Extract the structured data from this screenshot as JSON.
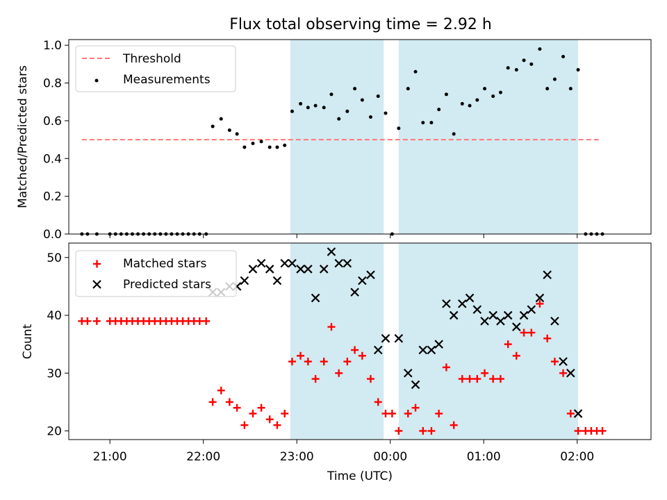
{
  "figure": {
    "title": "Flux total observing time = 2.92 h",
    "xlabel": "Time (UTC)"
  },
  "chart_data": [
    {
      "panel": "top",
      "type": "scatter",
      "ylabel": "Matched/Predicted stars",
      "ylim": [
        0,
        1.03
      ],
      "yticks": [
        "0.0",
        "0.2",
        "0.4",
        "0.6",
        "0.8",
        "1.0"
      ],
      "ytick_values": [
        0,
        0.2,
        0.4,
        0.6,
        0.8,
        1.0
      ],
      "xlim_hours": [
        20.56,
        26.79
      ],
      "legend": {
        "placement": "top-left",
        "entries": [
          "Threshold",
          "Measurements"
        ]
      },
      "threshold": {
        "name": "Threshold",
        "value": 0.5,
        "x_range_hours": [
          20.7,
          26.23
        ],
        "color": "#ff7777"
      },
      "observing_windows_hours": [
        [
          22.93,
          23.93
        ],
        [
          24.09,
          26.01
        ]
      ],
      "window_color": "#add8e6",
      "series": [
        {
          "name": "Measurements",
          "color": "#000000",
          "points": [
            [
              20.7,
              0.0
            ],
            [
              20.76,
              0.0
            ],
            [
              20.86,
              0.0
            ],
            [
              21.0,
              0.0
            ],
            [
              21.06,
              0.0
            ],
            [
              21.12,
              0.0
            ],
            [
              21.18,
              0.0
            ],
            [
              21.24,
              0.0
            ],
            [
              21.3,
              0.0
            ],
            [
              21.36,
              0.0
            ],
            [
              21.42,
              0.0
            ],
            [
              21.48,
              0.0
            ],
            [
              21.54,
              0.0
            ],
            [
              21.6,
              0.0
            ],
            [
              21.66,
              0.0
            ],
            [
              21.72,
              0.0
            ],
            [
              21.78,
              0.0
            ],
            [
              21.84,
              0.0
            ],
            [
              21.9,
              0.0
            ],
            [
              21.96,
              0.0
            ],
            [
              22.03,
              0.0
            ],
            [
              22.1,
              0.57
            ],
            [
              22.19,
              0.61
            ],
            [
              22.28,
              0.55
            ],
            [
              22.36,
              0.53
            ],
            [
              22.44,
              0.46
            ],
            [
              22.53,
              0.48
            ],
            [
              22.62,
              0.49
            ],
            [
              22.71,
              0.46
            ],
            [
              22.79,
              0.46
            ],
            [
              22.87,
              0.47
            ],
            [
              22.95,
              0.65
            ],
            [
              23.04,
              0.69
            ],
            [
              23.12,
              0.67
            ],
            [
              23.2,
              0.68
            ],
            [
              23.29,
              0.67
            ],
            [
              23.37,
              0.74
            ],
            [
              23.45,
              0.61
            ],
            [
              23.54,
              0.65
            ],
            [
              23.62,
              0.77
            ],
            [
              23.7,
              0.71
            ],
            [
              23.79,
              0.62
            ],
            [
              23.87,
              0.73
            ],
            [
              23.95,
              0.64
            ],
            [
              24.02,
              0.0
            ],
            [
              24.09,
              0.56
            ],
            [
              24.19,
              0.77
            ],
            [
              24.27,
              0.86
            ],
            [
              24.35,
              0.59
            ],
            [
              24.44,
              0.59
            ],
            [
              24.52,
              0.66
            ],
            [
              24.6,
              0.74
            ],
            [
              24.68,
              0.53
            ],
            [
              24.77,
              0.69
            ],
            [
              24.85,
              0.68
            ],
            [
              24.93,
              0.71
            ],
            [
              25.01,
              0.77
            ],
            [
              25.1,
              0.73
            ],
            [
              25.18,
              0.75
            ],
            [
              25.26,
              0.88
            ],
            [
              25.35,
              0.87
            ],
            [
              25.43,
              0.92
            ],
            [
              25.51,
              0.9
            ],
            [
              25.6,
              0.98
            ],
            [
              25.68,
              0.77
            ],
            [
              25.76,
              0.82
            ],
            [
              25.85,
              0.94
            ],
            [
              25.93,
              0.77
            ],
            [
              26.01,
              0.87
            ],
            [
              26.09,
              0.0
            ],
            [
              26.15,
              0.0
            ],
            [
              26.21,
              0.0
            ],
            [
              26.27,
              0.0
            ]
          ]
        }
      ]
    },
    {
      "panel": "bottom",
      "type": "scatter",
      "ylabel": "Count",
      "ylim": [
        18.5,
        52.5
      ],
      "yticks": [
        "20",
        "30",
        "40",
        "50"
      ],
      "ytick_values": [
        20,
        30,
        40,
        50
      ],
      "xlim_hours": [
        20.56,
        26.79
      ],
      "xticks": [
        "21:00",
        "22:00",
        "23:00",
        "00:00",
        "01:00",
        "02:00"
      ],
      "xtick_hours": [
        21,
        22,
        23,
        24,
        25,
        26
      ],
      "legend": {
        "placement": "top-left",
        "entries": [
          "Matched stars",
          "Predicted stars"
        ]
      },
      "observing_windows_hours": [
        [
          22.93,
          23.93
        ],
        [
          24.09,
          26.01
        ]
      ],
      "window_color": "#add8e6",
      "series": [
        {
          "name": "Matched stars",
          "marker": "plus",
          "color": "#ff0000",
          "points": [
            [
              20.7,
              39
            ],
            [
              20.76,
              39
            ],
            [
              20.86,
              39
            ],
            [
              21.0,
              39
            ],
            [
              21.06,
              39
            ],
            [
              21.12,
              39
            ],
            [
              21.18,
              39
            ],
            [
              21.24,
              39
            ],
            [
              21.3,
              39
            ],
            [
              21.36,
              39
            ],
            [
              21.42,
              39
            ],
            [
              21.48,
              39
            ],
            [
              21.54,
              39
            ],
            [
              21.6,
              39
            ],
            [
              21.66,
              39
            ],
            [
              21.72,
              39
            ],
            [
              21.78,
              39
            ],
            [
              21.84,
              39
            ],
            [
              21.9,
              39
            ],
            [
              21.96,
              39
            ],
            [
              22.03,
              39
            ],
            [
              22.1,
              25
            ],
            [
              22.19,
              27
            ],
            [
              22.28,
              25
            ],
            [
              22.36,
              24
            ],
            [
              22.44,
              21
            ],
            [
              22.53,
              23
            ],
            [
              22.62,
              24
            ],
            [
              22.71,
              22
            ],
            [
              22.79,
              21
            ],
            [
              22.87,
              23
            ],
            [
              22.95,
              32
            ],
            [
              23.04,
              33
            ],
            [
              23.12,
              32
            ],
            [
              23.2,
              29
            ],
            [
              23.29,
              32
            ],
            [
              23.37,
              38
            ],
            [
              23.45,
              30
            ],
            [
              23.54,
              32
            ],
            [
              23.62,
              34
            ],
            [
              23.7,
              33
            ],
            [
              23.79,
              29
            ],
            [
              23.87,
              25
            ],
            [
              23.95,
              23
            ],
            [
              24.02,
              23
            ],
            [
              24.09,
              20
            ],
            [
              24.19,
              23
            ],
            [
              24.27,
              24
            ],
            [
              24.35,
              20
            ],
            [
              24.44,
              20
            ],
            [
              24.52,
              23
            ],
            [
              24.6,
              31
            ],
            [
              24.68,
              21
            ],
            [
              24.77,
              29
            ],
            [
              24.85,
              29
            ],
            [
              24.93,
              29
            ],
            [
              25.01,
              30
            ],
            [
              25.1,
              29
            ],
            [
              25.18,
              29
            ],
            [
              25.26,
              35
            ],
            [
              25.35,
              33
            ],
            [
              25.43,
              37
            ],
            [
              25.51,
              37
            ],
            [
              25.6,
              42
            ],
            [
              25.68,
              36
            ],
            [
              25.76,
              32
            ],
            [
              25.85,
              30
            ],
            [
              25.93,
              23
            ],
            [
              26.01,
              20
            ],
            [
              26.09,
              20
            ],
            [
              26.15,
              20
            ],
            [
              26.21,
              20
            ],
            [
              26.27,
              20
            ]
          ]
        },
        {
          "name": "Predicted stars",
          "marker": "x",
          "color": "#000000",
          "points": [
            [
              22.1,
              44
            ],
            [
              22.19,
              44
            ],
            [
              22.28,
              45
            ],
            [
              22.36,
              45
            ],
            [
              22.44,
              46
            ],
            [
              22.53,
              48
            ],
            [
              22.62,
              49
            ],
            [
              22.71,
              48
            ],
            [
              22.79,
              46
            ],
            [
              22.87,
              49
            ],
            [
              22.95,
              49
            ],
            [
              23.04,
              48
            ],
            [
              23.12,
              48
            ],
            [
              23.2,
              43
            ],
            [
              23.29,
              48
            ],
            [
              23.37,
              51
            ],
            [
              23.45,
              49
            ],
            [
              23.54,
              49
            ],
            [
              23.62,
              44
            ],
            [
              23.7,
              46
            ],
            [
              23.79,
              47
            ],
            [
              23.87,
              34
            ],
            [
              23.95,
              36
            ],
            [
              24.09,
              36
            ],
            [
              24.19,
              30
            ],
            [
              24.27,
              28
            ],
            [
              24.35,
              34
            ],
            [
              24.44,
              34
            ],
            [
              24.52,
              35
            ],
            [
              24.6,
              42
            ],
            [
              24.68,
              40
            ],
            [
              24.77,
              42
            ],
            [
              24.85,
              43
            ],
            [
              24.93,
              41
            ],
            [
              25.01,
              39
            ],
            [
              25.1,
              40
            ],
            [
              25.18,
              39
            ],
            [
              25.26,
              40
            ],
            [
              25.35,
              38
            ],
            [
              25.43,
              40
            ],
            [
              25.51,
              41
            ],
            [
              25.6,
              43
            ],
            [
              25.68,
              47
            ],
            [
              25.76,
              39
            ],
            [
              25.85,
              32
            ],
            [
              25.93,
              30
            ],
            [
              26.01,
              23
            ]
          ]
        }
      ]
    }
  ]
}
